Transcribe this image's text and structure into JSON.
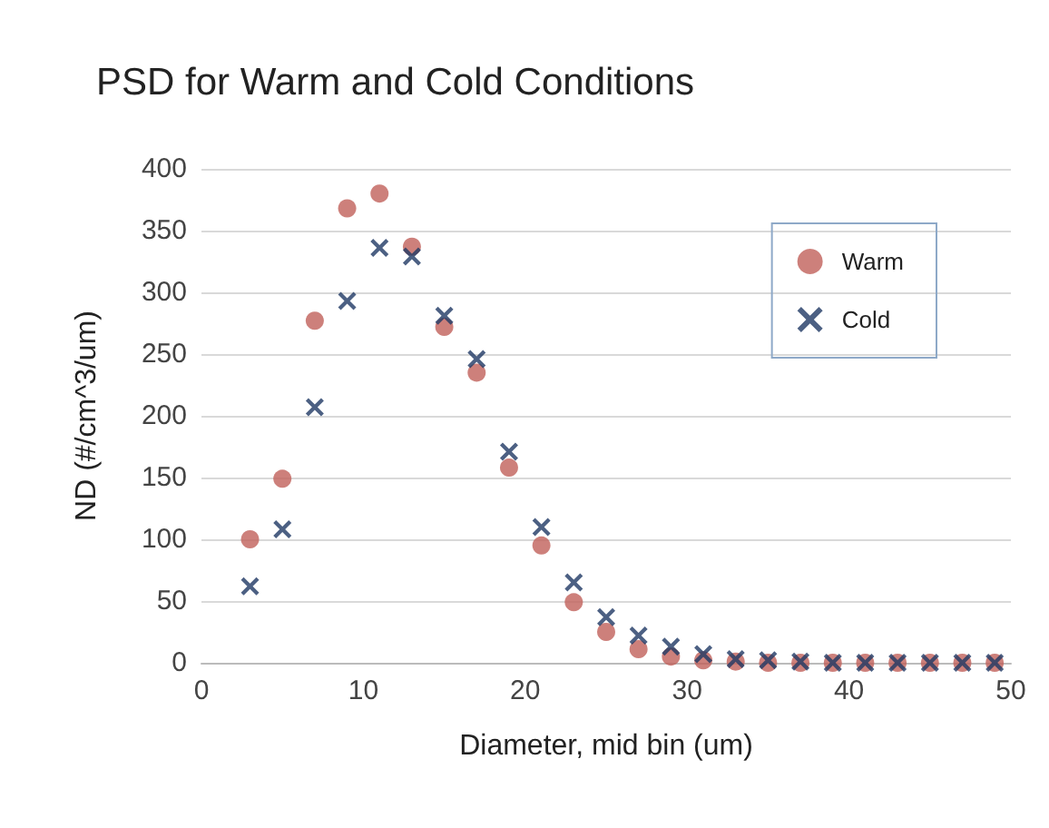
{
  "chart_data": {
    "type": "scatter",
    "title": "PSD for Warm and Cold Conditions",
    "xlabel": "Diameter, mid bin (um)",
    "ylabel": "ND (#/cm^3/um)",
    "x": [
      3,
      5,
      7,
      9,
      11,
      13,
      15,
      17,
      19,
      21,
      23,
      25,
      27,
      29,
      31,
      33,
      35,
      37,
      39,
      41,
      43,
      45,
      47,
      49
    ],
    "series": [
      {
        "name": "Warm",
        "color": "#c0605a",
        "marker": "circle",
        "values": [
          100,
          149,
          277,
          368,
          380,
          337,
          272,
          235,
          158,
          95,
          49,
          25,
          11,
          5,
          2,
          1,
          0,
          0,
          0,
          0,
          0,
          0,
          0,
          0
        ]
      },
      {
        "name": "Cold",
        "color": "#1f3864",
        "marker": "cross",
        "values": [
          62,
          108,
          207,
          293,
          336,
          329,
          281,
          246,
          171,
          110,
          65,
          37,
          22,
          13,
          7,
          3,
          2,
          1,
          0,
          0,
          0,
          0,
          0,
          0
        ]
      }
    ],
    "xlim": [
      0,
      50
    ],
    "xticks": [
      0,
      10,
      20,
      30,
      40,
      50
    ],
    "ylim": [
      0,
      400
    ],
    "yticks": [
      0,
      50,
      100,
      150,
      200,
      250,
      300,
      350,
      400
    ],
    "grid": "y",
    "legend": "top right"
  }
}
